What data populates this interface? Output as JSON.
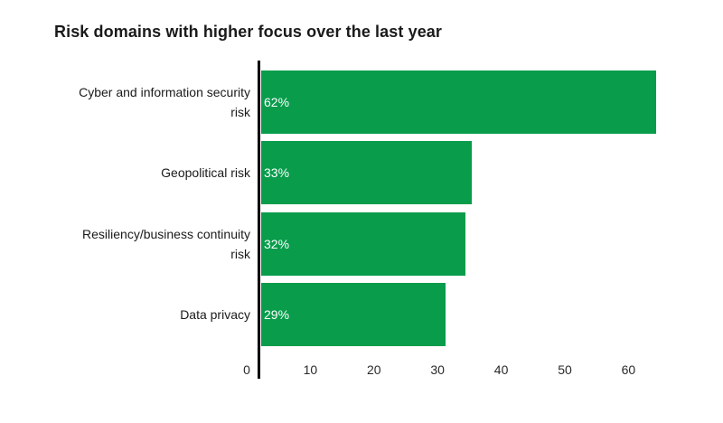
{
  "chart_data": {
    "type": "bar",
    "orientation": "horizontal",
    "title": "Risk domains with higher focus over the last year",
    "categories": [
      "Cyber and information security risk",
      "Geopolitical risk",
      "Resiliency/business continuity risk",
      "Data privacy"
    ],
    "category_lines": [
      [
        "Cyber and information security",
        "risk"
      ],
      [
        "Geopolitical risk"
      ],
      [
        "Resiliency/business continuity",
        "risk"
      ],
      [
        "Data privacy"
      ]
    ],
    "values": [
      62,
      33,
      32,
      29
    ],
    "value_labels": [
      "62%",
      "33%",
      "32%",
      "29%"
    ],
    "x_ticks": [
      "0",
      "10",
      "20",
      "30",
      "40",
      "50",
      "60"
    ],
    "xlim": [
      0,
      65
    ],
    "xlabel": "",
    "ylabel": "",
    "grid": false,
    "legend": "none",
    "bar_color": "#089c4b",
    "value_label_color": "#ffffff",
    "axis_line_color": "#000000",
    "title_color": "#1a1a1a",
    "category_label_color": "#1a1a1a",
    "tick_label_color": "#2a2a2a",
    "background_color": "#ffffff"
  }
}
